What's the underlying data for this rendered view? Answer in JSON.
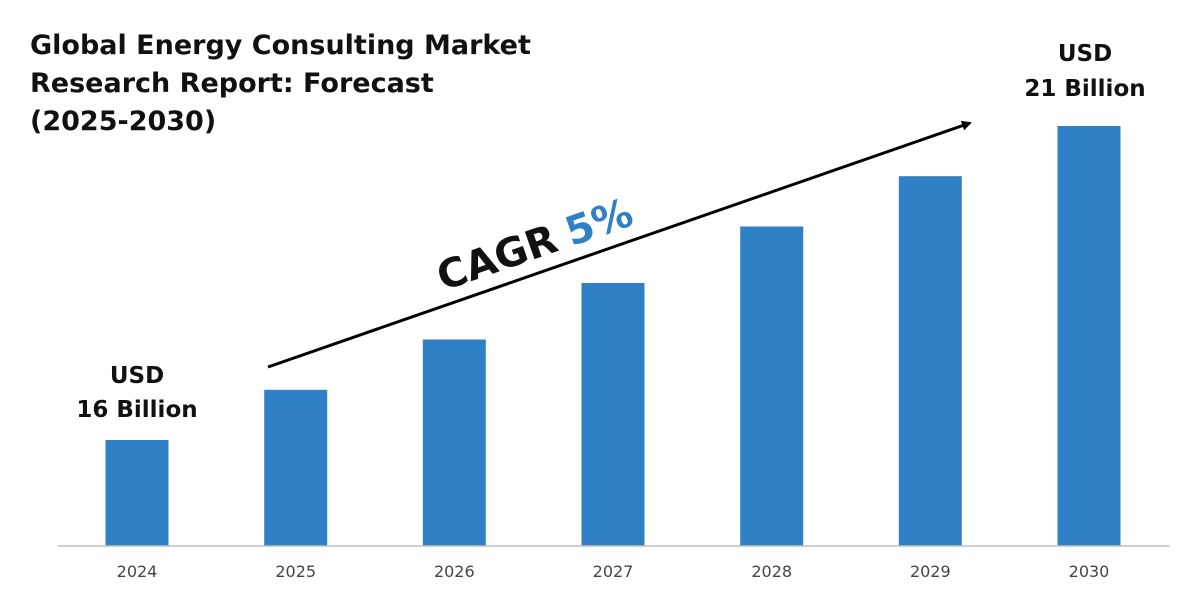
{
  "title_lines": [
    "Global Energy Consulting Market",
    "Research Report: Forecast",
    "(2025-2030)"
  ],
  "callouts": {
    "start": {
      "line1": "USD",
      "line2": "16 Billion"
    },
    "end": {
      "line1": "USD",
      "line2": "21 Billion"
    }
  },
  "cagr": {
    "label": "CAGR",
    "value": "5%"
  },
  "colors": {
    "bar": "#2f80c4",
    "cagr_value": "#2f80c4",
    "axis": "#bfbfbf",
    "arrow": "#000000"
  },
  "chart_data": {
    "type": "bar",
    "title": "Global Energy Consulting Market Research Report: Forecast (2025-2030)",
    "categories": [
      "2024",
      "2025",
      "2026",
      "2027",
      "2028",
      "2029",
      "2030"
    ],
    "values": [
      16,
      16.8,
      17.6,
      18.5,
      19.4,
      20.2,
      21
    ],
    "unit": "USD Billion",
    "xlabel": "",
    "ylabel": "",
    "grid": false,
    "legend": "none",
    "annotations": [
      "USD 16 Billion",
      "USD 21 Billion",
      "CAGR 5%"
    ]
  }
}
